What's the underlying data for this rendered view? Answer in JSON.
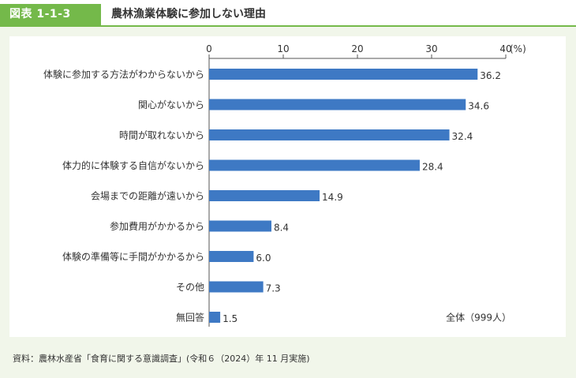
{
  "figure": {
    "label": "図表 1-1-3",
    "title": "農林漁業体験に参加しない理由"
  },
  "source_note": "資料：農林水産省「食育に関する意識調査」(令和６（2024）年 11 月実施)",
  "colors": {
    "bar": "#3e79c4",
    "accent": "#74b94a",
    "background": "#f1f6ea"
  },
  "chart_data": {
    "type": "bar",
    "orientation": "horizontal",
    "categories": [
      "体験に参加する方法がわからないから",
      "関心がないから",
      "時間が取れないから",
      "体力的に体験する自信がないから",
      "会場までの距離が遠いから",
      "参加費用がかかるから",
      "体験の準備等に手間がかかるから",
      "その他",
      "無回答"
    ],
    "values": [
      36.2,
      34.6,
      32.4,
      28.4,
      14.9,
      8.4,
      6.0,
      7.3,
      1.5
    ],
    "value_labels": [
      "36.2",
      "34.6",
      "32.4",
      "28.4",
      "14.9",
      "8.4",
      "6.0",
      "7.3",
      "1.5"
    ],
    "xlim": [
      0,
      40
    ],
    "ticks": [
      0,
      10,
      20,
      30,
      40
    ],
    "tick_labels": [
      "0",
      "10",
      "20",
      "30",
      "40"
    ],
    "unit": "(%)",
    "annotation": "全体（999人）",
    "grid": false
  }
}
